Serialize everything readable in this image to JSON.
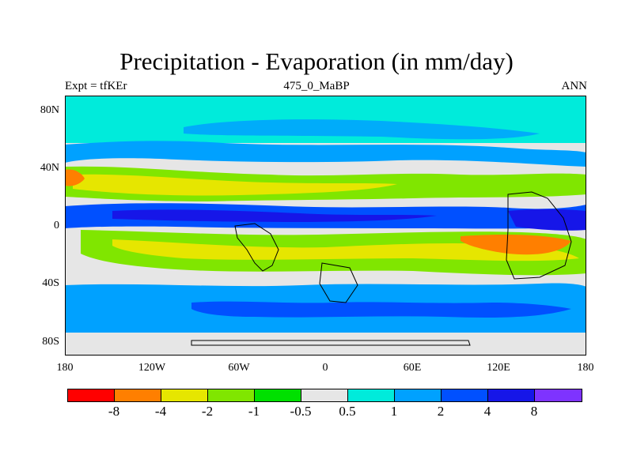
{
  "header": {
    "title": "Precipitation - Evaporation (in mm/day)",
    "left": "Expt = tfKEr",
    "center": "475_0_MaBP",
    "right": "ANN"
  },
  "map": {
    "lat_ticks": [
      "80N",
      "40N",
      "0",
      "40S",
      "80S"
    ],
    "lon_ticks": [
      "180",
      "120W",
      "60W",
      "0",
      "60E",
      "120E",
      "180"
    ],
    "field": "precipitation minus evaporation, annual mean"
  },
  "colorbar": {
    "colors": [
      "#ff0000",
      "#ff7f00",
      "#e6e600",
      "#80e600",
      "#00e000",
      "#e6e6e6",
      "#00ebdb",
      "#00a1ff",
      "#0050ff",
      "#1616e8",
      "#7e33ff"
    ],
    "labels": [
      "-8",
      "-4",
      "-2",
      "-1",
      "-0.5",
      "0.5",
      "1",
      "2",
      "4",
      "8"
    ]
  }
}
